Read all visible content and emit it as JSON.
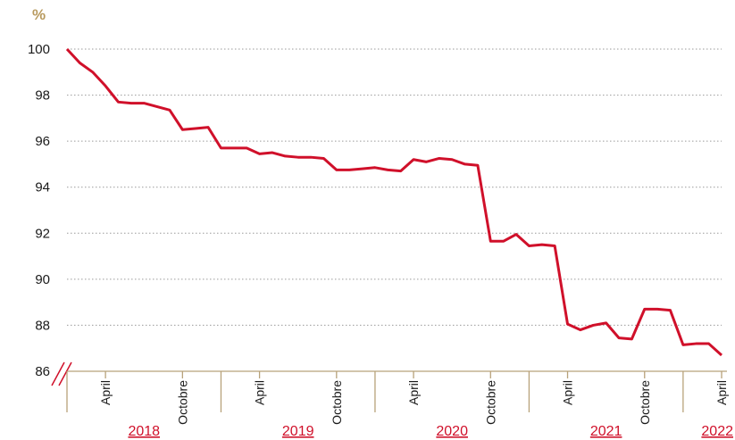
{
  "chart_data": {
    "type": "line",
    "y_label": "%",
    "categories": [
      null,
      null,
      null,
      "April",
      null,
      null,
      null,
      null,
      null,
      "Octobre",
      null,
      null,
      null,
      null,
      null,
      "April",
      null,
      null,
      null,
      null,
      null,
      "Octobre",
      null,
      null,
      null,
      null,
      null,
      "April",
      null,
      null,
      null,
      null,
      null,
      "Octobre",
      null,
      null,
      null,
      null,
      null,
      "April",
      null,
      null,
      null,
      null,
      null,
      "Octobre",
      null,
      null,
      null,
      null,
      null,
      "April"
    ],
    "years": [
      "2018",
      "2019",
      "2020",
      "2021",
      "2022"
    ],
    "series": [
      {
        "color": "#d0102a",
        "values": [
          100,
          99.4,
          99.0,
          98.4,
          97.7,
          97.65,
          97.65,
          97.5,
          97.35,
          96.5,
          96.55,
          96.6,
          95.7,
          95.7,
          95.7,
          95.45,
          95.5,
          95.35,
          95.3,
          95.3,
          95.25,
          94.75,
          94.75,
          94.8,
          94.85,
          94.75,
          94.7,
          95.2,
          95.1,
          95.25,
          95.2,
          95.0,
          94.95,
          91.65,
          91.65,
          91.95,
          91.45,
          91.5,
          91.45,
          88.05,
          87.8,
          88.0,
          88.1,
          87.45,
          87.4,
          88.7,
          88.7,
          88.65,
          87.15,
          87.2,
          87.2,
          86.7
        ]
      }
    ],
    "ylim": [
      86,
      100
    ],
    "yticks": [
      86,
      88,
      90,
      92,
      94,
      96,
      98,
      100
    ],
    "grid": true
  }
}
